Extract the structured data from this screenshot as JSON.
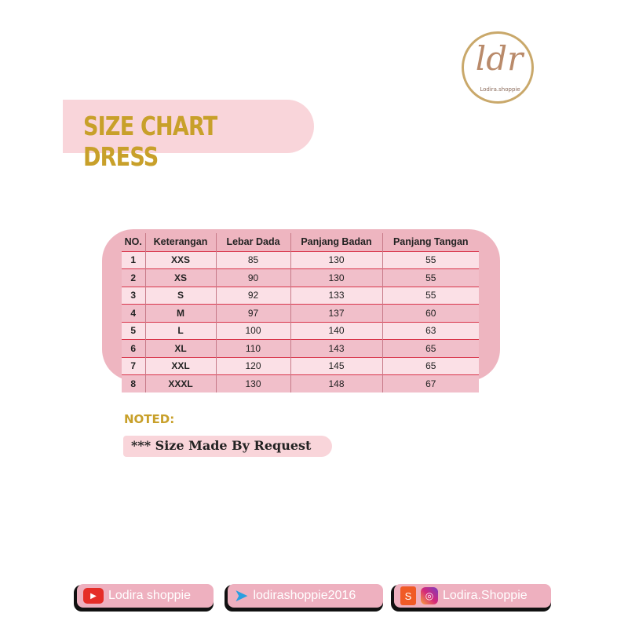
{
  "logo": {
    "monogram": "ldr",
    "name": "Lodira.shoppie"
  },
  "title": "SIZE CHART DRESS",
  "table": {
    "headers": [
      "NO.",
      "Keterangan",
      "Lebar Dada",
      "Panjang Badan",
      "Panjang Tangan"
    ],
    "rows": [
      [
        "1",
        "XXS",
        "85",
        "130",
        "55"
      ],
      [
        "2",
        "XS",
        "90",
        "130",
        "55"
      ],
      [
        "3",
        "S",
        "92",
        "133",
        "55"
      ],
      [
        "4",
        "M",
        "97",
        "137",
        "60"
      ],
      [
        "5",
        "L",
        "100",
        "140",
        "63"
      ],
      [
        "6",
        "XL",
        "110",
        "143",
        "65"
      ],
      [
        "7",
        "XXL",
        "120",
        "145",
        "65"
      ],
      [
        "8",
        "XXXL",
        "130",
        "148",
        "67"
      ]
    ]
  },
  "noted": {
    "label": "NOTED:",
    "text": "*** Size Made By Request"
  },
  "social": [
    {
      "icon": "youtube-icon",
      "label": "Lodira shoppie"
    },
    {
      "icon": "telegram-icon",
      "label": "lodirashoppie2016"
    },
    {
      "icon": "shopee-instagram-icon",
      "label": "Lodira.Shoppie"
    }
  ],
  "colors": {
    "gold": "#c8a02a",
    "pink": "#eeb5c0",
    "red_line": "#d8344a"
  }
}
